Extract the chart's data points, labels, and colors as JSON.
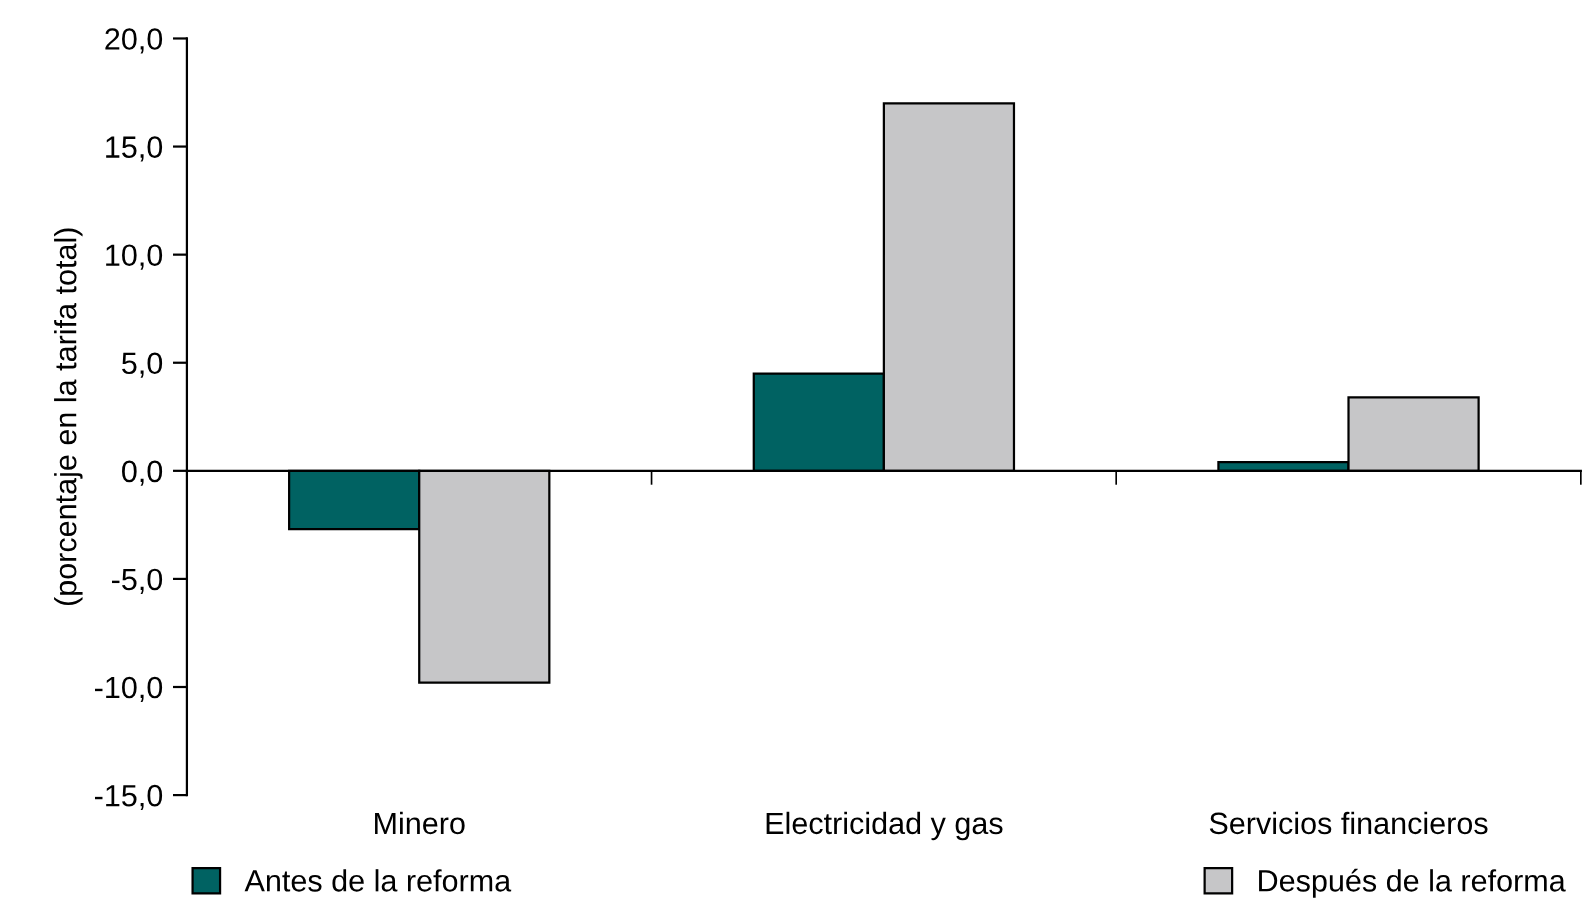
{
  "chart_data": {
    "type": "bar",
    "ylabel": "(porcentaje en la tarifa total)",
    "categories": [
      "Minero",
      "Electricidad y gas",
      "Servicios financieros"
    ],
    "series": [
      {
        "name": "Antes de la reforma",
        "color": "#006262",
        "values": [
          -2.7,
          4.5,
          0.4
        ]
      },
      {
        "name": "Después de la reforma",
        "color": "#c6c6c8",
        "values": [
          -9.8,
          17.0,
          3.4
        ]
      }
    ],
    "ylim": [
      -15,
      20
    ],
    "yticks": [
      {
        "value": -15,
        "label": "-15,0"
      },
      {
        "value": -10,
        "label": "-10,0"
      },
      {
        "value": -5,
        "label": "-5,0"
      },
      {
        "value": 0,
        "label": "0,0"
      },
      {
        "value": 5,
        "label": "5,0"
      },
      {
        "value": 10,
        "label": "10,0"
      },
      {
        "value": 15,
        "label": "15,0"
      },
      {
        "value": 20,
        "label": "20,0"
      }
    ],
    "legend": "bottom"
  }
}
